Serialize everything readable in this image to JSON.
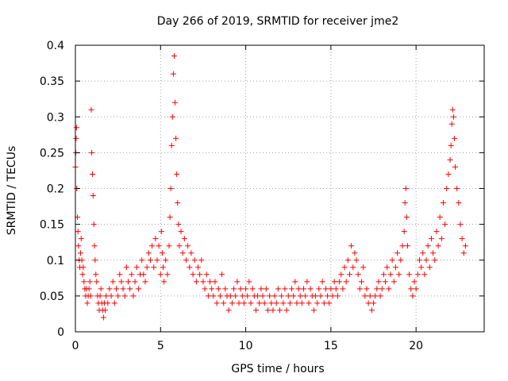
{
  "chart_data": {
    "type": "scatter",
    "title": "Day 266 of 2019, SRMTID for receiver jme2",
    "xlabel": "GPS time / hours",
    "ylabel": "SRMTID / TECUs",
    "xlim": [
      0,
      24
    ],
    "ylim": [
      0,
      0.4
    ],
    "xticks": [
      0,
      5,
      10,
      15,
      20
    ],
    "xtick_labels": [
      "0",
      "5",
      "10",
      "15",
      "20"
    ],
    "yticks": [
      0,
      0.05,
      0.1,
      0.15,
      0.2,
      0.25,
      0.3,
      0.35,
      0.4
    ],
    "ytick_labels": [
      "0",
      "0.05",
      "0.1",
      "0.15",
      "0.2",
      "0.25",
      "0.3",
      "0.35",
      "0.4"
    ],
    "grid": true,
    "marker": "plus",
    "color": "#ff0000",
    "series": [
      {
        "name": "SRMTID",
        "points": [
          [
            0.0,
            0.23
          ],
          [
            0.02,
            0.25
          ],
          [
            0.04,
            0.27
          ],
          [
            0.06,
            0.285
          ],
          [
            0.08,
            0.2
          ],
          [
            0.12,
            0.16
          ],
          [
            0.15,
            0.14
          ],
          [
            0.18,
            0.12
          ],
          [
            0.22,
            0.1
          ],
          [
            0.26,
            0.09
          ],
          [
            0.3,
            0.11
          ],
          [
            0.34,
            0.13
          ],
          [
            0.38,
            0.1
          ],
          [
            0.42,
            0.08
          ],
          [
            0.46,
            0.09
          ],
          [
            0.5,
            0.07
          ],
          [
            0.55,
            0.06
          ],
          [
            0.6,
            0.05
          ],
          [
            0.65,
            0.06
          ],
          [
            0.7,
            0.04
          ],
          [
            0.75,
            0.05
          ],
          [
            0.8,
            0.06
          ],
          [
            0.85,
            0.07
          ],
          [
            0.9,
            0.05
          ],
          [
            0.93,
            0.31
          ],
          [
            0.96,
            0.25
          ],
          [
            1.0,
            0.22
          ],
          [
            1.04,
            0.19
          ],
          [
            1.08,
            0.15
          ],
          [
            1.12,
            0.12
          ],
          [
            1.16,
            0.1
          ],
          [
            1.2,
            0.08
          ],
          [
            1.25,
            0.07
          ],
          [
            1.3,
            0.05
          ],
          [
            1.35,
            0.04
          ],
          [
            1.4,
            0.03
          ],
          [
            1.45,
            0.05
          ],
          [
            1.5,
            0.06
          ],
          [
            1.55,
            0.04
          ],
          [
            1.6,
            0.03
          ],
          [
            1.65,
            0.02
          ],
          [
            1.7,
            0.04
          ],
          [
            1.75,
            0.03
          ],
          [
            1.8,
            0.05
          ],
          [
            1.9,
            0.04
          ],
          [
            2.0,
            0.06
          ],
          [
            2.1,
            0.05
          ],
          [
            2.2,
            0.07
          ],
          [
            2.3,
            0.04
          ],
          [
            2.4,
            0.06
          ],
          [
            2.5,
            0.05
          ],
          [
            2.6,
            0.08
          ],
          [
            2.7,
            0.07
          ],
          [
            2.8,
            0.06
          ],
          [
            2.9,
            0.05
          ],
          [
            3.0,
            0.09
          ],
          [
            3.1,
            0.07
          ],
          [
            3.2,
            0.06
          ],
          [
            3.3,
            0.08
          ],
          [
            3.4,
            0.05
          ],
          [
            3.5,
            0.07
          ],
          [
            3.6,
            0.09
          ],
          [
            3.7,
            0.06
          ],
          [
            3.8,
            0.08
          ],
          [
            3.9,
            0.1
          ],
          [
            4.0,
            0.08
          ],
          [
            4.1,
            0.07
          ],
          [
            4.2,
            0.09
          ],
          [
            4.3,
            0.11
          ],
          [
            4.4,
            0.1
          ],
          [
            4.5,
            0.12
          ],
          [
            4.6,
            0.09
          ],
          [
            4.7,
            0.13
          ],
          [
            4.8,
            0.1
          ],
          [
            4.9,
            0.12
          ],
          [
            5.0,
            0.08
          ],
          [
            5.05,
            0.14
          ],
          [
            5.1,
            0.11
          ],
          [
            5.15,
            0.09
          ],
          [
            5.2,
            0.07
          ],
          [
            5.3,
            0.1
          ],
          [
            5.4,
            0.08
          ],
          [
            5.5,
            0.12
          ],
          [
            5.55,
            0.16
          ],
          [
            5.6,
            0.2
          ],
          [
            5.65,
            0.26
          ],
          [
            5.7,
            0.3
          ],
          [
            5.75,
            0.36
          ],
          [
            5.8,
            0.385
          ],
          [
            5.85,
            0.32
          ],
          [
            5.9,
            0.27
          ],
          [
            5.95,
            0.22
          ],
          [
            6.0,
            0.18
          ],
          [
            6.05,
            0.15
          ],
          [
            6.1,
            0.12
          ],
          [
            6.2,
            0.14
          ],
          [
            6.3,
            0.11
          ],
          [
            6.4,
            0.13
          ],
          [
            6.5,
            0.1
          ],
          [
            6.6,
            0.12
          ],
          [
            6.7,
            0.09
          ],
          [
            6.8,
            0.11
          ],
          [
            6.9,
            0.08
          ],
          [
            7.0,
            0.1
          ],
          [
            7.1,
            0.07
          ],
          [
            7.2,
            0.09
          ],
          [
            7.3,
            0.08
          ],
          [
            7.4,
            0.1
          ],
          [
            7.5,
            0.07
          ],
          [
            7.6,
            0.06
          ],
          [
            7.7,
            0.08
          ],
          [
            7.8,
            0.05
          ],
          [
            7.9,
            0.07
          ],
          [
            8.0,
            0.06
          ],
          [
            8.1,
            0.05
          ],
          [
            8.2,
            0.07
          ],
          [
            8.3,
            0.04
          ],
          [
            8.4,
            0.06
          ],
          [
            8.5,
            0.05
          ],
          [
            8.6,
            0.08
          ],
          [
            8.7,
            0.04
          ],
          [
            8.8,
            0.06
          ],
          [
            8.9,
            0.05
          ],
          [
            9.0,
            0.03
          ],
          [
            9.1,
            0.05
          ],
          [
            9.2,
            0.04
          ],
          [
            9.3,
            0.06
          ],
          [
            9.4,
            0.05
          ],
          [
            9.5,
            0.07
          ],
          [
            9.6,
            0.04
          ],
          [
            9.7,
            0.06
          ],
          [
            9.8,
            0.05
          ],
          [
            9.9,
            0.04
          ],
          [
            10.0,
            0.06
          ],
          [
            10.1,
            0.05
          ],
          [
            10.2,
            0.07
          ],
          [
            10.3,
            0.04
          ],
          [
            10.4,
            0.06
          ],
          [
            10.5,
            0.05
          ],
          [
            10.6,
            0.03
          ],
          [
            10.7,
            0.05
          ],
          [
            10.8,
            0.04
          ],
          [
            10.9,
            0.06
          ],
          [
            11.0,
            0.05
          ],
          [
            11.1,
            0.04
          ],
          [
            11.2,
            0.06
          ],
          [
            11.3,
            0.03
          ],
          [
            11.4,
            0.05
          ],
          [
            11.5,
            0.04
          ],
          [
            11.6,
            0.03
          ],
          [
            11.7,
            0.05
          ],
          [
            11.8,
            0.04
          ],
          [
            11.9,
            0.06
          ],
          [
            12.0,
            0.03
          ],
          [
            12.1,
            0.05
          ],
          [
            12.2,
            0.04
          ],
          [
            12.3,
            0.06
          ],
          [
            12.4,
            0.03
          ],
          [
            12.5,
            0.05
          ],
          [
            12.6,
            0.04
          ],
          [
            12.7,
            0.06
          ],
          [
            12.8,
            0.05
          ],
          [
            12.9,
            0.07
          ],
          [
            13.0,
            0.04
          ],
          [
            13.1,
            0.06
          ],
          [
            13.2,
            0.05
          ],
          [
            13.3,
            0.04
          ],
          [
            13.4,
            0.06
          ],
          [
            13.5,
            0.05
          ],
          [
            13.6,
            0.07
          ],
          [
            13.7,
            0.04
          ],
          [
            13.8,
            0.06
          ],
          [
            13.9,
            0.05
          ],
          [
            14.0,
            0.03
          ],
          [
            14.1,
            0.05
          ],
          [
            14.2,
            0.04
          ],
          [
            14.3,
            0.06
          ],
          [
            14.4,
            0.05
          ],
          [
            14.5,
            0.07
          ],
          [
            14.6,
            0.04
          ],
          [
            14.7,
            0.06
          ],
          [
            14.8,
            0.05
          ],
          [
            14.9,
            0.04
          ],
          [
            15.0,
            0.06
          ],
          [
            15.1,
            0.05
          ],
          [
            15.2,
            0.07
          ],
          [
            15.3,
            0.06
          ],
          [
            15.4,
            0.05
          ],
          [
            15.5,
            0.07
          ],
          [
            15.6,
            0.08
          ],
          [
            15.7,
            0.06
          ],
          [
            15.8,
            0.09
          ],
          [
            15.9,
            0.07
          ],
          [
            16.0,
            0.1
          ],
          [
            16.1,
            0.08
          ],
          [
            16.2,
            0.12
          ],
          [
            16.3,
            0.09
          ],
          [
            16.4,
            0.11
          ],
          [
            16.5,
            0.1
          ],
          [
            16.6,
            0.08
          ],
          [
            16.7,
            0.06
          ],
          [
            16.8,
            0.07
          ],
          [
            16.9,
            0.09
          ],
          [
            17.0,
            0.05
          ],
          [
            17.1,
            0.06
          ],
          [
            17.2,
            0.04
          ],
          [
            17.3,
            0.05
          ],
          [
            17.4,
            0.03
          ],
          [
            17.5,
            0.04
          ],
          [
            17.6,
            0.05
          ],
          [
            17.7,
            0.06
          ],
          [
            17.8,
            0.07
          ],
          [
            17.9,
            0.05
          ],
          [
            18.0,
            0.06
          ],
          [
            18.1,
            0.08
          ],
          [
            18.2,
            0.07
          ],
          [
            18.3,
            0.09
          ],
          [
            18.4,
            0.06
          ],
          [
            18.5,
            0.08
          ],
          [
            18.6,
            0.1
          ],
          [
            18.7,
            0.07
          ],
          [
            18.8,
            0.09
          ],
          [
            18.9,
            0.11
          ],
          [
            19.0,
            0.08
          ],
          [
            19.1,
            0.1
          ],
          [
            19.2,
            0.12
          ],
          [
            19.3,
            0.14
          ],
          [
            19.35,
            0.18
          ],
          [
            19.4,
            0.2
          ],
          [
            19.45,
            0.16
          ],
          [
            19.5,
            0.12
          ],
          [
            19.6,
            0.08
          ],
          [
            19.7,
            0.06
          ],
          [
            19.8,
            0.05
          ],
          [
            19.9,
            0.07
          ],
          [
            20.0,
            0.06
          ],
          [
            20.1,
            0.08
          ],
          [
            20.2,
            0.1
          ],
          [
            20.3,
            0.09
          ],
          [
            20.4,
            0.11
          ],
          [
            20.5,
            0.08
          ],
          [
            20.6,
            0.1
          ],
          [
            20.7,
            0.12
          ],
          [
            20.8,
            0.09
          ],
          [
            20.9,
            0.13
          ],
          [
            21.0,
            0.11
          ],
          [
            21.1,
            0.1
          ],
          [
            21.2,
            0.14
          ],
          [
            21.3,
            0.12
          ],
          [
            21.4,
            0.16
          ],
          [
            21.5,
            0.13
          ],
          [
            21.6,
            0.18
          ],
          [
            21.7,
            0.15
          ],
          [
            21.8,
            0.2
          ],
          [
            21.9,
            0.22
          ],
          [
            22.0,
            0.24
          ],
          [
            22.05,
            0.26
          ],
          [
            22.1,
            0.29
          ],
          [
            22.15,
            0.31
          ],
          [
            22.2,
            0.3
          ],
          [
            22.25,
            0.27
          ],
          [
            22.3,
            0.23
          ],
          [
            22.4,
            0.2
          ],
          [
            22.5,
            0.18
          ],
          [
            22.6,
            0.15
          ],
          [
            22.7,
            0.13
          ],
          [
            22.8,
            0.11
          ],
          [
            22.9,
            0.12
          ]
        ]
      }
    ]
  }
}
